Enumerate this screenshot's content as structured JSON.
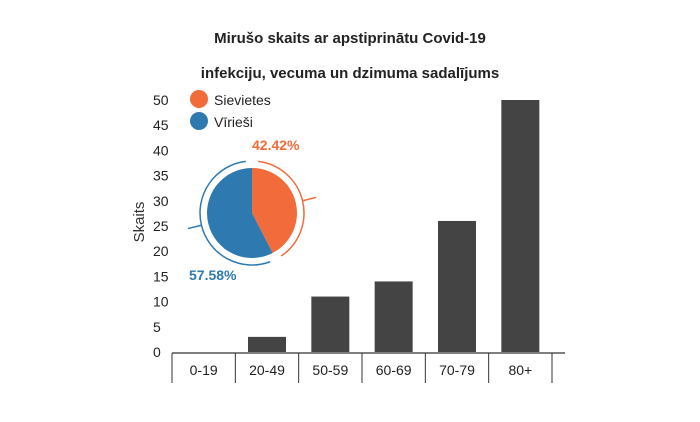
{
  "chart_data": [
    {
      "type": "bar",
      "title_line1": "Mirušo skaits ar apstiprinātu Covid-19",
      "title_line2": "infekciju, vecuma un dzimuma sadalījums",
      "ylabel": "Skaits",
      "xlabel": "",
      "ylim": [
        0,
        50
      ],
      "yticks": [
        0,
        5,
        10,
        15,
        20,
        25,
        30,
        35,
        40,
        45,
        50
      ],
      "categories": [
        "0-19",
        "20-49",
        "50-59",
        "60-69",
        "70-79",
        "80+"
      ],
      "values": [
        0,
        3,
        11,
        14,
        26,
        50
      ],
      "bar_color": "#444444",
      "grid": false
    },
    {
      "type": "pie",
      "slices": [
        {
          "name": "Sievietes",
          "value": 42.42,
          "label": "42.42%",
          "color": "#f26b3a"
        },
        {
          "name": "Vīrieši",
          "value": 57.58,
          "label": "57.58%",
          "color": "#2e7ab0"
        }
      ],
      "legend_position": "top-left"
    }
  ]
}
